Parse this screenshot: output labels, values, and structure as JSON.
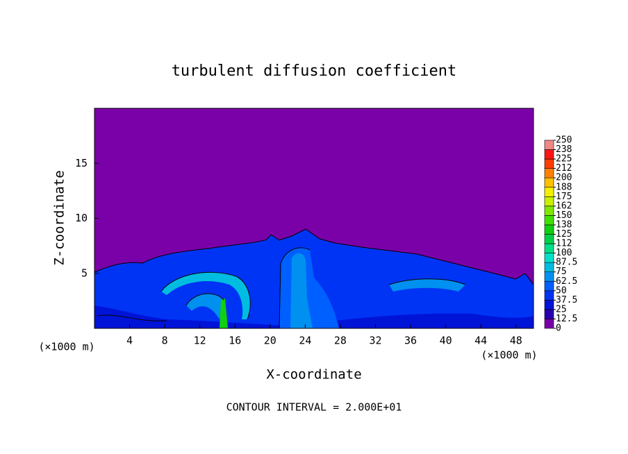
{
  "chart_data": {
    "type": "contour",
    "title": "turbulent diffusion coefficient",
    "x_label": "X-coordinate",
    "y_label": "Z-coordinate",
    "x_unit": "(×1000 m)",
    "y_unit": "(×1000 m)",
    "footnote": "CONTOUR INTERVAL = 2.000E+01",
    "xlim": [
      0,
      50
    ],
    "xticks": [
      4,
      8,
      12,
      16,
      20,
      24,
      28,
      32,
      36,
      40,
      44,
      48
    ],
    "ylim": [
      0,
      20
    ],
    "yticks": [
      5,
      10,
      15
    ],
    "colorbar": {
      "ticks": [
        0,
        12.5,
        25,
        37.5,
        50,
        62.5,
        75,
        87.5,
        100,
        {
          "value": 112.5,
          "label": "112"
        },
        125,
        {
          "value": 137.5,
          "label": "138"
        },
        150,
        {
          "value": 162.5,
          "label": "162"
        },
        175,
        {
          "value": 187.5,
          "label": "188"
        },
        200,
        {
          "value": 212.5,
          "label": "212"
        },
        225,
        {
          "value": 237.5,
          "label": "238"
        },
        250
      ],
      "colors": [
        "#7a00a8",
        "#2800b0",
        "#0014d8",
        "#0034f4",
        "#0060ff",
        "#0090f0",
        "#00bce0",
        "#00e0c8",
        "#00e088",
        "#00d048",
        "#10d010",
        "#40e000",
        "#80e800",
        "#c8f000",
        "#f4f000",
        "#ffc000",
        "#ff8000",
        "#ff3c00",
        "#ff1414",
        "#f08888"
      ]
    }
  }
}
